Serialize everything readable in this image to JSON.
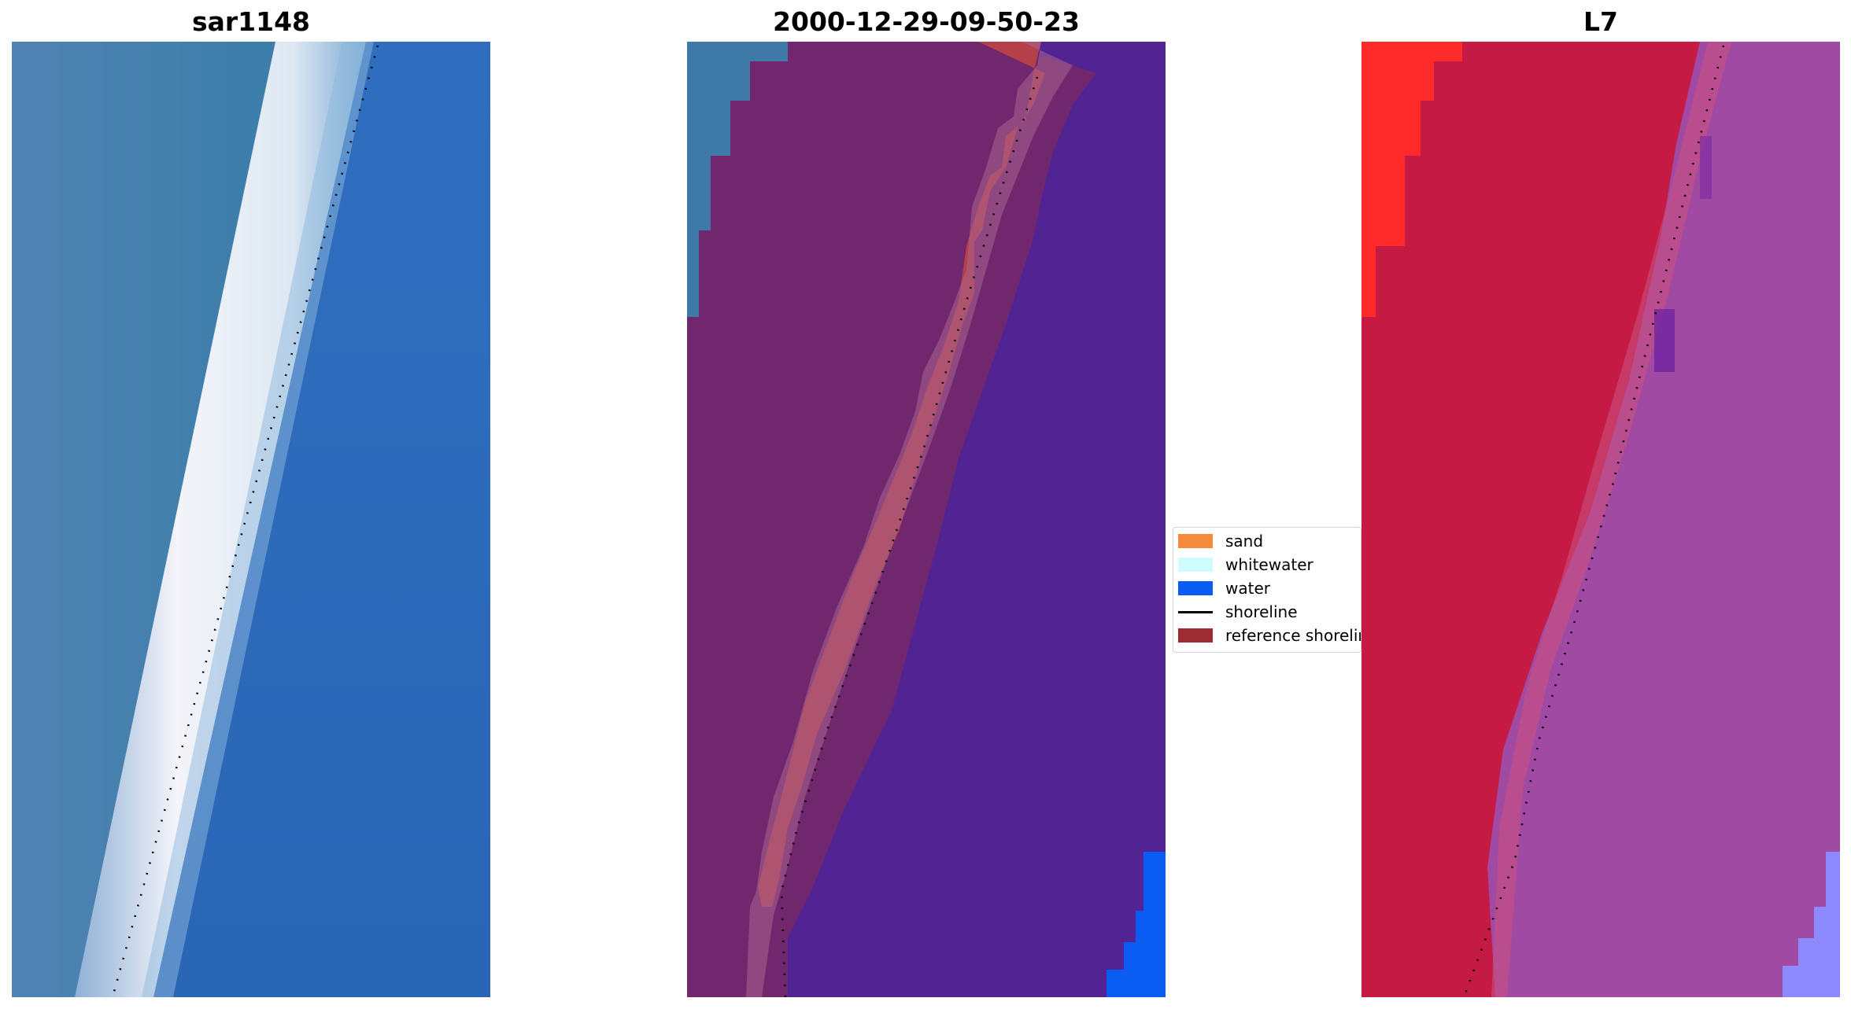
{
  "panels": [
    {
      "title": "sar1148",
      "image": "rgb-satellite-image"
    },
    {
      "title": "2000-12-29-09-50-23",
      "image": "classified-image"
    },
    {
      "title": "L7",
      "image": "false-color-image"
    }
  ],
  "legend": {
    "items": [
      {
        "label": "sand",
        "color": "#f58a3c",
        "kind": "patch"
      },
      {
        "label": "whitewater",
        "color": "#cffcfc",
        "kind": "patch"
      },
      {
        "label": "water",
        "color": "#0b5cf2",
        "kind": "patch"
      },
      {
        "label": "shoreline",
        "color": "#000000",
        "kind": "line"
      },
      {
        "label": "reference shoreline",
        "color": "#9e2d33",
        "kind": "patch"
      }
    ]
  },
  "colors": {
    "sar_land": "#4a7bb5",
    "sar_water": "#2a6abd",
    "sar_whitewater": "#e8ecf6",
    "class_land": "#71276e",
    "class_water": "#522493",
    "class_reference": "#b5404a",
    "false_color_land": "#c41a44",
    "false_color_water": "#a04aa4",
    "false_color_bright": "#ff2a2a"
  }
}
